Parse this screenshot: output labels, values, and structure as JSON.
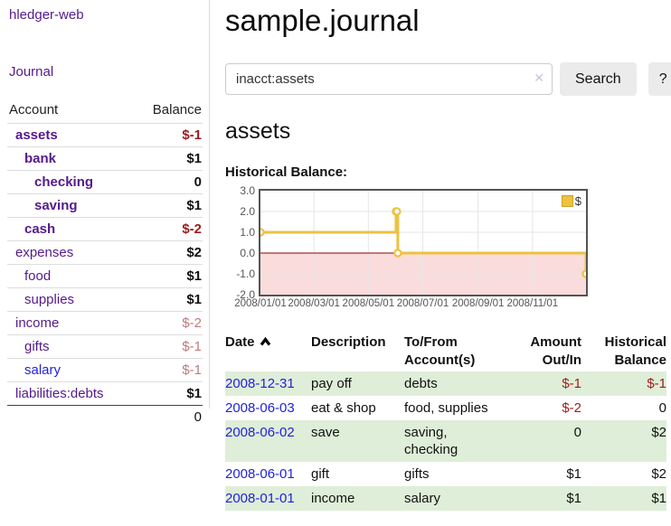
{
  "app": {
    "title": "hledger-web"
  },
  "sidebar": {
    "journal_label": "Journal",
    "accounts_table": {
      "headers": {
        "account": "Account",
        "balance": "Balance"
      },
      "rows": [
        {
          "name": "assets",
          "balance": "$-1",
          "indent": 0,
          "bold": true,
          "balance_class": "neg-strong"
        },
        {
          "name": "bank",
          "balance": "$1",
          "indent": 1,
          "bold": true,
          "balance_class": ""
        },
        {
          "name": "checking",
          "balance": "0",
          "indent": 2,
          "bold": true,
          "balance_class": ""
        },
        {
          "name": "saving",
          "balance": "$1",
          "indent": 2,
          "bold": true,
          "balance_class": ""
        },
        {
          "name": "cash",
          "balance": "$-2",
          "indent": 1,
          "bold": true,
          "balance_class": "neg-strong"
        },
        {
          "name": "expenses",
          "balance": "$2",
          "indent": 0,
          "bold": false,
          "balance_class": ""
        },
        {
          "name": "food",
          "balance": "$1",
          "indent": 1,
          "bold": false,
          "balance_class": ""
        },
        {
          "name": "supplies",
          "balance": "$1",
          "indent": 1,
          "bold": false,
          "balance_class": ""
        },
        {
          "name": "income",
          "balance": "$-2",
          "indent": 0,
          "bold": false,
          "balance_class": "muted"
        },
        {
          "name": "gifts",
          "balance": "$-1",
          "indent": 1,
          "bold": false,
          "balance_class": "muted"
        },
        {
          "name": "salary",
          "balance": "$-1",
          "indent": 1,
          "bold": false,
          "balance_class": "muted",
          "link_color": "blue"
        },
        {
          "name": "liabilities:debts",
          "balance": "$1",
          "indent": 0,
          "bold": false,
          "balance_class": ""
        }
      ],
      "total": "0"
    }
  },
  "header": {
    "title": "sample.journal"
  },
  "search": {
    "value": "inacct:assets",
    "clear_icon": "✕",
    "button_label": "Search",
    "help_label": "?"
  },
  "account_page": {
    "title": "assets",
    "chart_label": "Historical Balance:"
  },
  "chart_data": {
    "type": "line",
    "step": true,
    "title": "Historical Balance:",
    "legend": {
      "label": "$",
      "position": "top-right",
      "swatch_color": "#edc240"
    },
    "series": [
      {
        "name": "$",
        "color": "#edc240",
        "points": [
          {
            "x": "2008-01-01",
            "y": 1
          },
          {
            "x": "2008-06-01",
            "y": 2
          },
          {
            "x": "2008-06-02",
            "y": 2
          },
          {
            "x": "2008-06-03",
            "y": 0
          },
          {
            "x": "2008-12-31",
            "y": -1
          }
        ]
      }
    ],
    "x_ticks": [
      "2008/01/01",
      "2008/03/01",
      "2008/05/01",
      "2008/07/01",
      "2008/09/01",
      "2008/11/01"
    ],
    "y_ticks": [
      3.0,
      2.0,
      1.0,
      0.0,
      -1.0,
      -2.0
    ],
    "ylim": [
      -2,
      3
    ],
    "grid": true,
    "negative_region_color": "#fadcdc",
    "zero_line_color": "#8b0000"
  },
  "register_table": {
    "headers": {
      "date": "Date",
      "description": "Description",
      "accounts": "To/From Account(s)",
      "amount": "Amount Out/In",
      "balance": "Historical Balance"
    },
    "sort": {
      "column": "date",
      "direction": "asc"
    },
    "rows": [
      {
        "date": "2008-12-31",
        "description": "pay off",
        "accounts": "debts",
        "amount": "$-1",
        "balance": "$-1"
      },
      {
        "date": "2008-06-03",
        "description": "eat & shop",
        "accounts": "food, supplies",
        "amount": "$-2",
        "balance": "0"
      },
      {
        "date": "2008-06-02",
        "description": "save",
        "accounts": "saving, checking",
        "amount": "0",
        "balance": "$2"
      },
      {
        "date": "2008-06-01",
        "description": "gift",
        "accounts": "gifts",
        "amount": "$1",
        "balance": "$2"
      },
      {
        "date": "2008-01-01",
        "description": "income",
        "accounts": "salary",
        "amount": "$1",
        "balance": "$1"
      }
    ]
  }
}
